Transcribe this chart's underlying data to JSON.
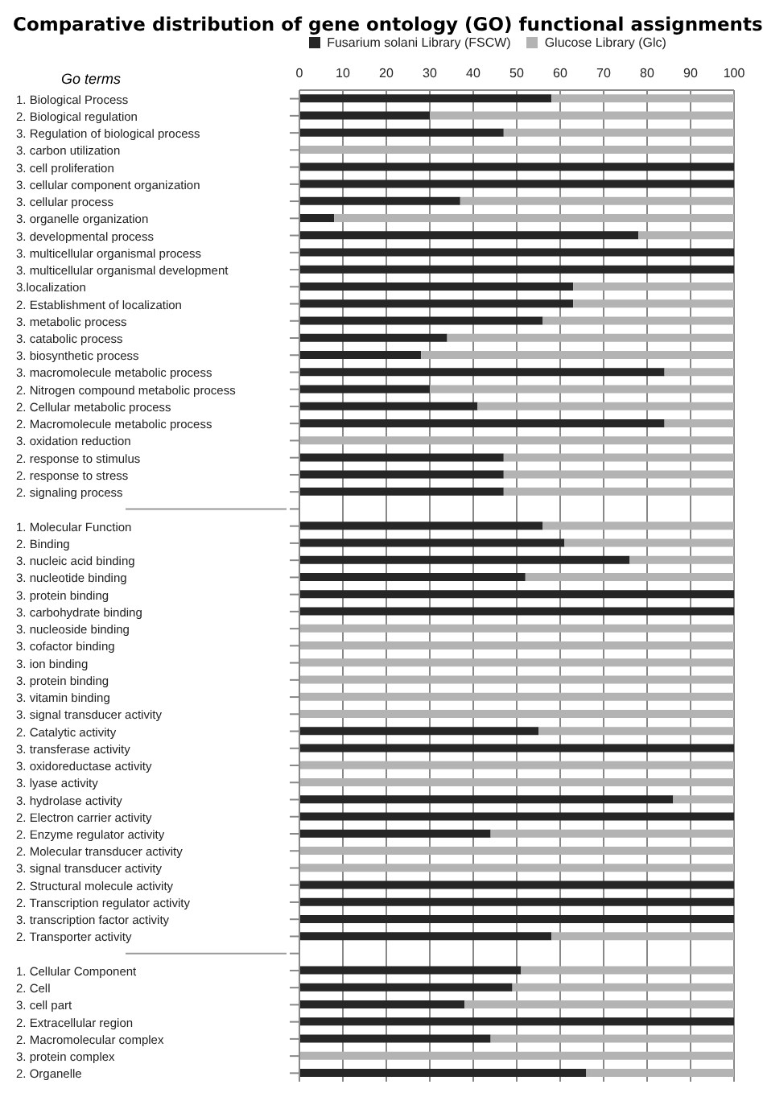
{
  "chart_data": {
    "type": "bar",
    "orientation": "horizontal",
    "stacked": true,
    "title": "Comparative distribution of gene ontology (GO) functional assignments",
    "ylabel": "Go terms",
    "categories": [
      "1. Biological Process",
      "2. Biological regulation",
      "3. Regulation of biological process",
      "3. carbon utilization",
      "3. cell proliferation",
      "3. cellular component organization",
      "3. cellular process",
      "3. organelle organization",
      "3. developmental process",
      "3. multicellular organismal process",
      "3. multicellular organismal development",
      "3.localization",
      "2. Establishment of localization",
      "3. metabolic process",
      "3. catabolic process",
      "3. biosynthetic process",
      "3. macromolecule metabolic process",
      "2. Nitrogen compound metabolic process",
      "2. Cellular metabolic process",
      "2. Macromolecule metabolic process",
      "3. oxidation reduction",
      "2. response to stimulus",
      "2. response to stress",
      "2. signaling process",
      null,
      "1. Molecular Function",
      "2. Binding",
      "3. nucleic acid binding",
      "3. nucleotide binding",
      "3. protein binding",
      "3. carbohydrate binding",
      "3. nucleoside binding",
      "3. cofactor binding",
      "3. ion binding",
      "3. protein binding",
      "3. vitamin binding",
      "3. signal transducer activity",
      "2. Catalytic activity",
      "3. transferase activity",
      "3. oxidoreductase activity",
      "3. lyase activity",
      "3. hydrolase activity",
      "2. Electron carrier activity",
      "2. Enzyme regulator activity",
      "2. Molecular transducer activity",
      "3. signal transducer activity",
      "2. Structural molecule activity",
      "2. Transcription regulator activity",
      "3. transcription factor activity",
      "2. Transporter activity",
      null,
      "1. Cellular Component",
      "2. Cell",
      "3. cell part",
      "2. Extracellular region",
      "2. Macromolecular complex",
      "3. protein complex",
      "2. Organelle"
    ],
    "series": [
      {
        "name": "Fusarium solani Library (FSCW)",
        "color": "#262626",
        "values": [
          58,
          30,
          47,
          0,
          100,
          100,
          37,
          8,
          78,
          100,
          100,
          63,
          63,
          56,
          34,
          28,
          84,
          30,
          41,
          84,
          0,
          47,
          47,
          47,
          null,
          56,
          61,
          76,
          52,
          100,
          100,
          0,
          0,
          0,
          0,
          0,
          0,
          55,
          100,
          0,
          0,
          86,
          100,
          44,
          0,
          0,
          100,
          100,
          100,
          58,
          null,
          51,
          49,
          38,
          100,
          44,
          0,
          66
        ]
      },
      {
        "name": "Glucose Library (Glc)",
        "color": "#b3b3b3",
        "values": [
          42,
          70,
          53,
          100,
          0,
          0,
          63,
          92,
          22,
          0,
          0,
          37,
          37,
          44,
          66,
          72,
          16,
          70,
          59,
          16,
          100,
          53,
          53,
          53,
          null,
          44,
          39,
          24,
          48,
          0,
          0,
          100,
          100,
          100,
          100,
          100,
          100,
          45,
          0,
          100,
          100,
          14,
          0,
          56,
          100,
          100,
          0,
          0,
          0,
          42,
          null,
          49,
          51,
          62,
          0,
          56,
          100,
          34
        ]
      }
    ],
    "xlim": [
      0,
      100
    ],
    "xticks": [
      0,
      10,
      20,
      30,
      40,
      50,
      60,
      70,
      80,
      90,
      100
    ],
    "grid": "x",
    "legend": "top"
  }
}
